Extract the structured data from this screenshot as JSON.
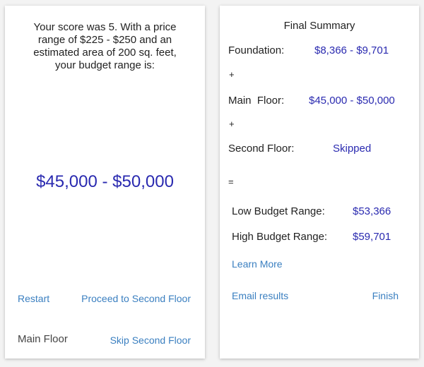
{
  "left_panel": {
    "message": "Your score was 5. With a price range of $225 - $250 and an estimated area of 200 sq. feet, your budget range is:",
    "budget_range": "$45,000 - $50,000",
    "restart_label": "Restart",
    "proceed_label": "Proceed to Second Floor",
    "section_label": "Main Floor",
    "skip_label": "Skip Second Floor"
  },
  "right_panel": {
    "title": "Final Summary",
    "rows": [
      {
        "label": "Foundation:",
        "value": "$8,366 - $9,701"
      },
      {
        "label": "Main  Floor:",
        "value": "$45,000 - $50,000"
      },
      {
        "label": "Second Floor:",
        "value": "Skipped"
      }
    ],
    "plus": "+",
    "equals": "=",
    "low_label": "Low Budget Range:",
    "low_value": "$53,366",
    "high_label": "High Budget Range:",
    "high_value": "$59,701",
    "learn_more": "Learn More",
    "email_label": "Email results",
    "finish_label": "Finish"
  },
  "colors": {
    "value_blue": "#2a2ab0",
    "link_blue": "#3a7fc0",
    "background": "#f3f3f3"
  }
}
